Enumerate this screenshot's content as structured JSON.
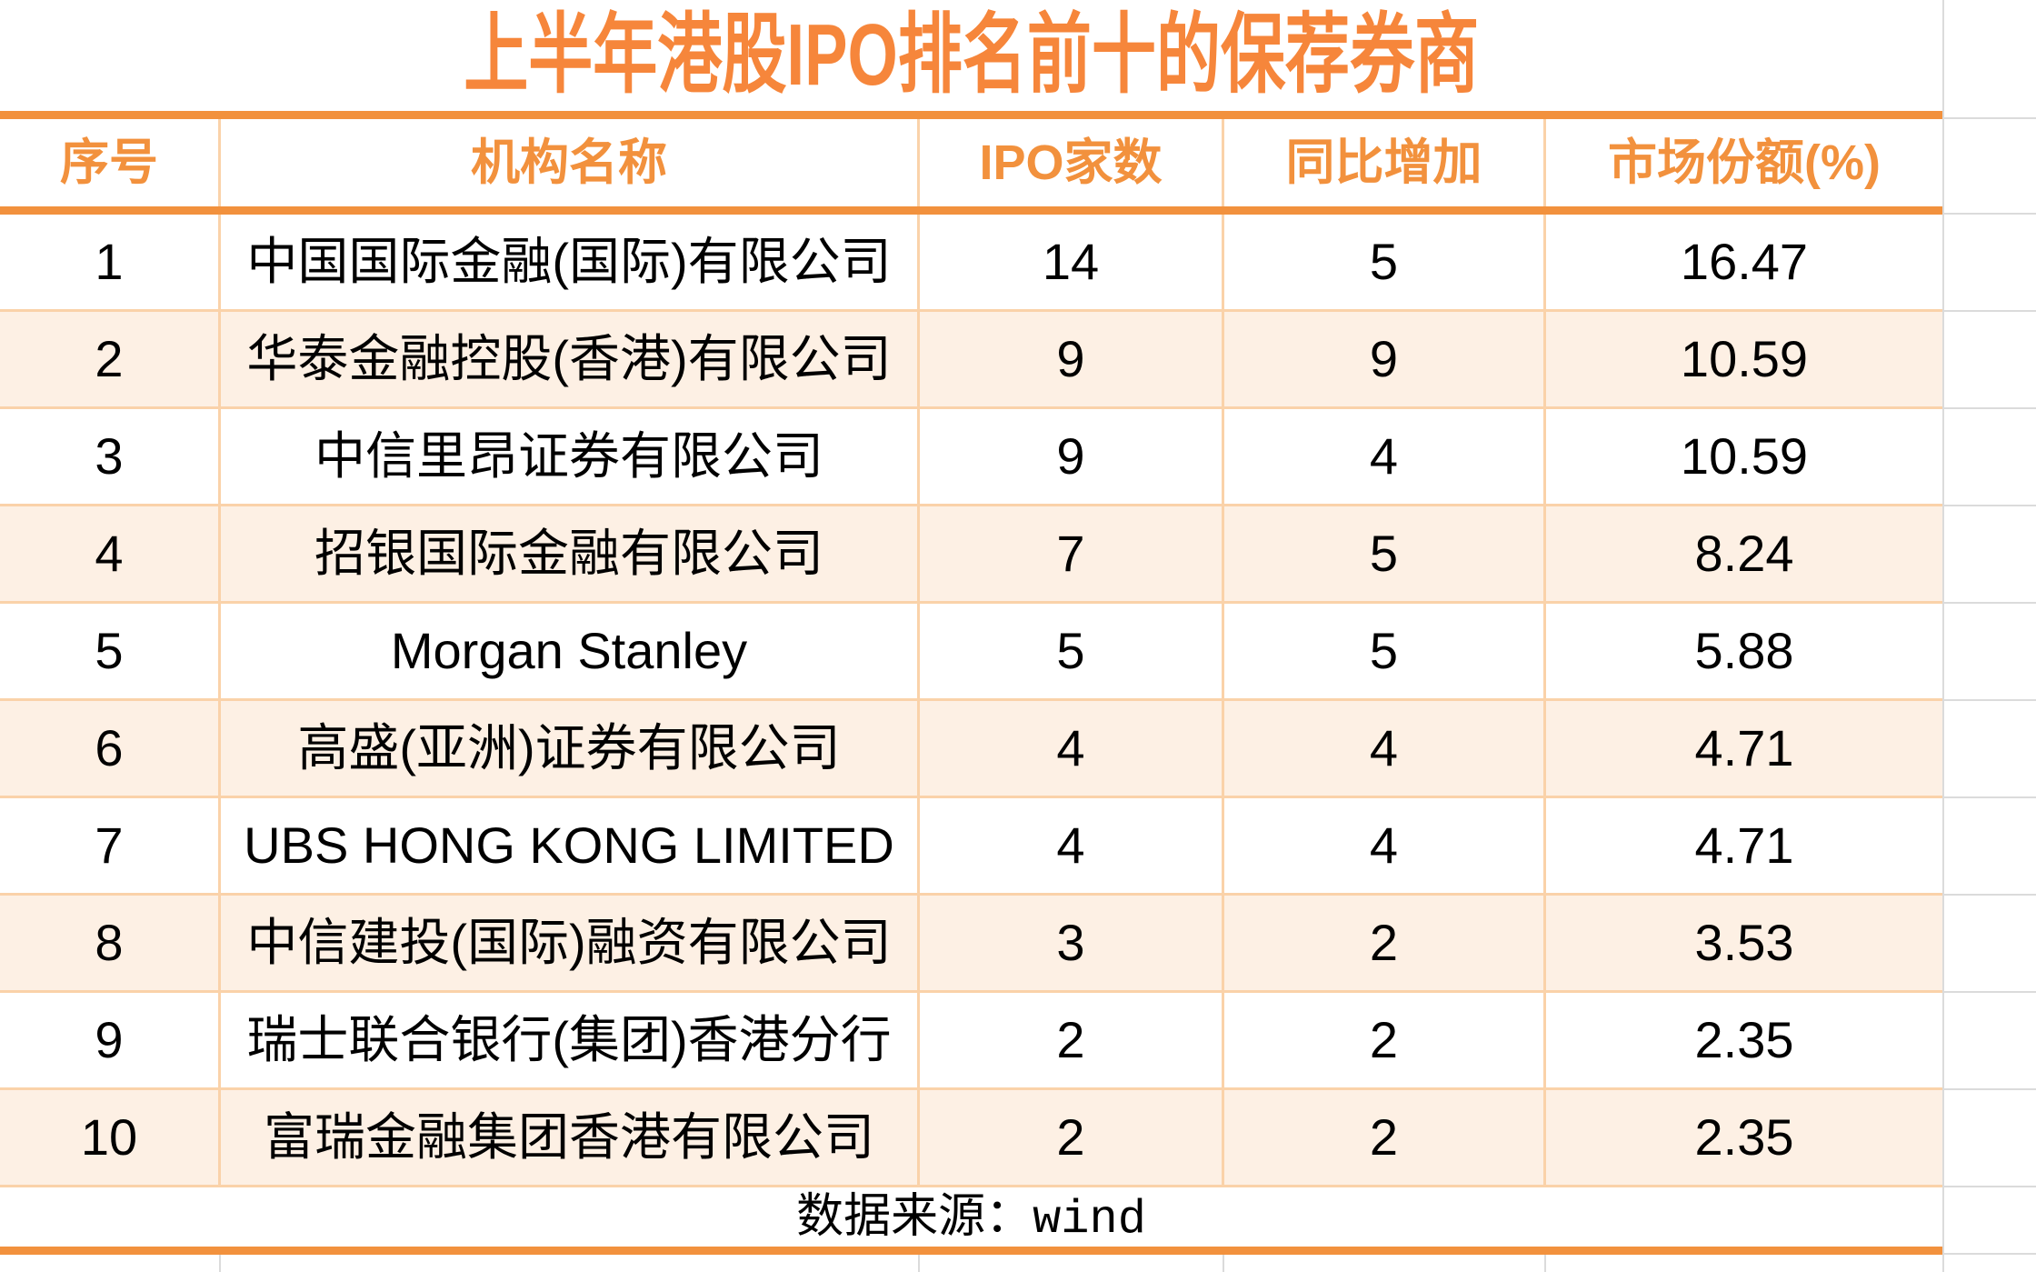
{
  "chart_data": {
    "type": "table",
    "title": "上半年港股IPO排名前十的保荐券商",
    "columns": [
      "序号",
      "机构名称",
      "IPO家数",
      "同比增加",
      "市场份额(%)"
    ],
    "rows": [
      [
        "1",
        "中国国际金融(国际)有限公司",
        "14",
        "5",
        "16.47"
      ],
      [
        "2",
        "华泰金融控股(香港)有限公司",
        "9",
        "9",
        "10.59"
      ],
      [
        "3",
        "中信里昂证券有限公司",
        "9",
        "4",
        "10.59"
      ],
      [
        "4",
        "招银国际金融有限公司",
        "7",
        "5",
        "8.24"
      ],
      [
        "5",
        "Morgan Stanley",
        "5",
        "5",
        "5.88"
      ],
      [
        "6",
        "高盛(亚洲)证券有限公司",
        "4",
        "4",
        "4.71"
      ],
      [
        "7",
        "UBS HONG KONG LIMITED",
        "4",
        "4",
        "4.71"
      ],
      [
        "8",
        "中信建投(国际)融资有限公司",
        "3",
        "2",
        "3.53"
      ],
      [
        "9",
        "瑞士联合银行(集团)香港分行",
        "2",
        "2",
        "2.35"
      ],
      [
        "10",
        "富瑞金融集团香港有限公司",
        "2",
        "2",
        "2.35"
      ]
    ],
    "source_note": "数据来源：wind",
    "layout_hints": {
      "striped_rows": true,
      "stripe_pattern": "odd rows white, even rows peach"
    }
  },
  "colors": {
    "accent_orange_rule": "#F2913D",
    "title_text": "#F6863B",
    "header_text": "#F2913D",
    "light_cell_border": "#FAD2A9",
    "alt_row_background": "#FDF0E4",
    "data_text": "#000000",
    "spreadsheet_gridline": "#DBDBDB",
    "background": "#FFFFFF"
  }
}
